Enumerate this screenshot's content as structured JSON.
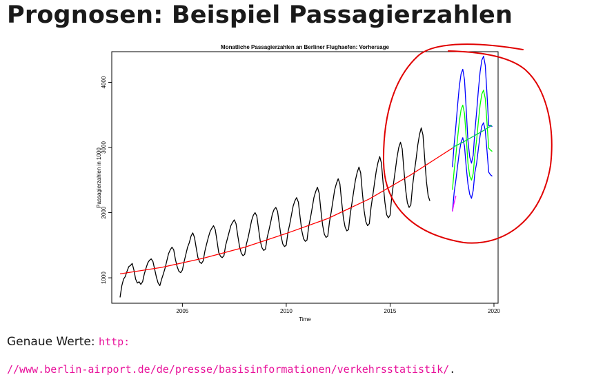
{
  "slide": {
    "title": "Prognosen: Beispiel Passagierzahlen",
    "footer_label": "Genaue Werte: ",
    "url_part1": "http:",
    "url_part2": "//www.berlin-airport.de/de/presse/basisinformationen/verkehrsstatistik/",
    "url_trailing": "."
  },
  "chart_data": {
    "type": "line",
    "title": "Monatliche Passagierzahlen an Berliner Flughaefen: Vorhersage",
    "xlabel": "Time",
    "ylabel": "Passagierzahlen in 1000",
    "xlim": [
      2001.6,
      2020.2
    ],
    "ylim": [
      610,
      4470
    ],
    "xticks": [
      2005,
      2010,
      2015,
      2020
    ],
    "yticks": [
      1000,
      2000,
      3000,
      4000
    ],
    "grid": false,
    "series": [
      {
        "color": "#000000",
        "x_start": 2002.0,
        "step": 0.08333,
        "values": [
          700,
          880,
          980,
          1020,
          1100,
          1170,
          1190,
          1220,
          1120,
          980,
          920,
          940,
          900,
          940,
          1060,
          1150,
          1230,
          1270,
          1290,
          1250,
          1130,
          1010,
          920,
          880,
          980,
          1060,
          1150,
          1260,
          1370,
          1430,
          1470,
          1430,
          1280,
          1170,
          1100,
          1080,
          1120,
          1250,
          1360,
          1470,
          1540,
          1640,
          1690,
          1620,
          1460,
          1310,
          1240,
          1220,
          1260,
          1410,
          1520,
          1620,
          1710,
          1760,
          1800,
          1740,
          1570,
          1390,
          1330,
          1310,
          1340,
          1500,
          1600,
          1700,
          1800,
          1850,
          1890,
          1830,
          1650,
          1480,
          1380,
          1340,
          1360,
          1520,
          1620,
          1750,
          1880,
          1960,
          2000,
          1950,
          1750,
          1560,
          1460,
          1420,
          1440,
          1620,
          1730,
          1850,
          1980,
          2050,
          2080,
          2020,
          1820,
          1640,
          1520,
          1480,
          1500,
          1700,
          1820,
          1960,
          2100,
          2180,
          2230,
          2160,
          1930,
          1720,
          1600,
          1560,
          1580,
          1790,
          1920,
          2070,
          2230,
          2320,
          2390,
          2300,
          2040,
          1810,
          1670,
          1620,
          1640,
          1860,
          2010,
          2180,
          2350,
          2450,
          2520,
          2440,
          2170,
          1920,
          1780,
          1720,
          1740,
          1980,
          2150,
          2330,
          2500,
          2620,
          2700,
          2610,
          2300,
          2030,
          1860,
          1800,
          1830,
          2080,
          2260,
          2450,
          2640,
          2770,
          2860,
          2760,
          2440,
          2160,
          1970,
          1920,
          1960,
          2250,
          2450,
          2650,
          2850,
          3000,
          3080,
          2980,
          2650,
          2350,
          2150,
          2080,
          2120,
          2410,
          2620,
          2820,
          3040,
          3200,
          3300,
          3190,
          2830,
          2480,
          2260,
          2180
        ]
      },
      {
        "color": "#ff0000",
        "x": [
          2002.0,
          2004,
          2006,
          2008,
          2010,
          2012,
          2014,
          2016,
          2018.0
        ],
        "values": [
          1060,
          1160,
          1300,
          1470,
          1680,
          1910,
          2210,
          2580,
          2990
        ]
      },
      {
        "color": "#00ff00",
        "x_start": 2018.0,
        "step": 0.08333,
        "values": [
          2350,
          2650,
          2880,
          3150,
          3400,
          3580,
          3650,
          3520,
          3150,
          2760,
          2560,
          2500,
          2600,
          2900,
          3120,
          3400,
          3650,
          3820,
          3880,
          3750,
          3380,
          2990,
          2960,
          2940
        ]
      },
      {
        "color": "#0000ff",
        "x_start": 2018.0,
        "step": 0.08333,
        "values": [
          2700,
          3050,
          3330,
          3650,
          3940,
          4130,
          4200,
          4040,
          3580,
          3100,
          2850,
          2760,
          2880,
          3260,
          3550,
          3880,
          4160,
          4340,
          4400,
          4260,
          3820,
          3330,
          3340,
          3320
        ]
      },
      {
        "color": "#0000ff",
        "x_start": 2018.0,
        "step": 0.08333,
        "values": [
          2020,
          2310,
          2500,
          2720,
          2930,
          3080,
          3150,
          3020,
          2700,
          2440,
          2280,
          2220,
          2340,
          2620,
          2760,
          2980,
          3180,
          3330,
          3380,
          3260,
          2950,
          2620,
          2580,
          2560
        ]
      },
      {
        "color": "#00cc55",
        "x": [
          2018.0,
          2018.5,
          2019.0,
          2019.5,
          2019.9
        ],
        "values": [
          3000,
          3080,
          3170,
          3260,
          3340
        ]
      },
      {
        "color": "#ff00ff",
        "x": [
          2018.0,
          2018.08,
          2018.17
        ],
        "values": [
          2020,
          2150,
          2260
        ]
      }
    ],
    "annotation": {
      "type": "hand-drawn-ellipse",
      "color": "#e00000"
    }
  }
}
